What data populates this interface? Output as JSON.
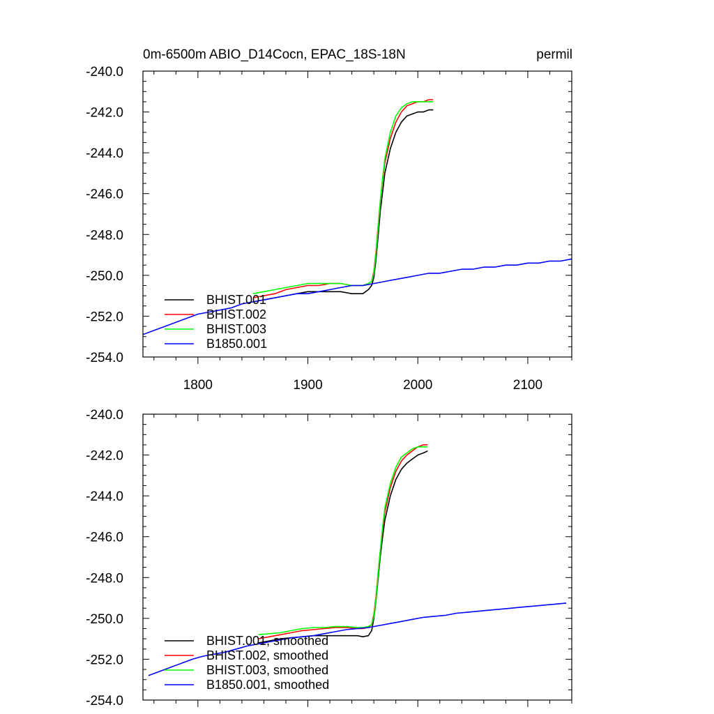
{
  "chart_data": [
    {
      "type": "line",
      "title": "0m-6500m ABIO_D14Cocn, EPAC_18S-18N",
      "title_right": "permil",
      "xlim": [
        1750,
        2140
      ],
      "ylim": [
        -254,
        -240
      ],
      "x_ticks": [
        1800,
        1900,
        2000,
        2100
      ],
      "x_tick_labels": [
        "1800",
        "1900",
        "2000",
        "2100"
      ],
      "y_ticks": [
        -240,
        -242,
        -244,
        -246,
        -248,
        -250,
        -252,
        -254
      ],
      "y_tick_labels": [
        "-240.0",
        "-242.0",
        "-244.0",
        "-246.0",
        "-248.0",
        "-250.0",
        "-252.0",
        "-254.0"
      ],
      "legend_position": "bottom-left",
      "series": [
        {
          "name": "BHIST.001",
          "color": "#000000",
          "x": [
            1850,
            1860,
            1870,
            1880,
            1890,
            1900,
            1910,
            1920,
            1930,
            1940,
            1945,
            1950,
            1955,
            1958,
            1960,
            1962,
            1964,
            1966,
            1968,
            1970,
            1975,
            1980,
            1985,
            1990,
            1995,
            2000,
            2005,
            2010,
            2014
          ],
          "y": [
            -251.3,
            -251.2,
            -251.1,
            -251.0,
            -250.9,
            -250.8,
            -250.8,
            -250.8,
            -250.8,
            -250.9,
            -250.9,
            -250.9,
            -250.7,
            -250.5,
            -250.1,
            -249.2,
            -248.0,
            -246.8,
            -245.9,
            -245.0,
            -243.8,
            -243.0,
            -242.5,
            -242.2,
            -242.1,
            -242.0,
            -242.0,
            -241.9,
            -241.9
          ]
        },
        {
          "name": "BHIST.002",
          "color": "#ff0000",
          "x": [
            1850,
            1860,
            1870,
            1880,
            1890,
            1900,
            1910,
            1920,
            1930,
            1940,
            1945,
            1950,
            1955,
            1958,
            1960,
            1962,
            1964,
            1966,
            1968,
            1970,
            1975,
            1980,
            1985,
            1990,
            1995,
            2000,
            2005,
            2010,
            2014
          ],
          "y": [
            -251.1,
            -251.0,
            -250.9,
            -250.7,
            -250.6,
            -250.5,
            -250.5,
            -250.4,
            -250.4,
            -250.5,
            -250.5,
            -250.5,
            -250.4,
            -250.3,
            -249.8,
            -248.8,
            -247.5,
            -246.3,
            -245.3,
            -244.5,
            -243.3,
            -242.5,
            -242.0,
            -241.7,
            -241.6,
            -241.5,
            -241.5,
            -241.4,
            -241.4
          ]
        },
        {
          "name": "BHIST.003",
          "color": "#00ff00",
          "x": [
            1850,
            1860,
            1870,
            1880,
            1890,
            1900,
            1910,
            1920,
            1930,
            1940,
            1945,
            1950,
            1955,
            1958,
            1960,
            1962,
            1964,
            1966,
            1968,
            1970,
            1975,
            1980,
            1985,
            1990,
            1995,
            2000,
            2005,
            2010,
            2014
          ],
          "y": [
            -250.9,
            -250.8,
            -250.7,
            -250.6,
            -250.5,
            -250.4,
            -250.4,
            -250.4,
            -250.4,
            -250.5,
            -250.5,
            -250.5,
            -250.4,
            -250.3,
            -249.9,
            -248.9,
            -247.6,
            -246.3,
            -245.2,
            -244.3,
            -243.0,
            -242.2,
            -241.8,
            -241.6,
            -241.5,
            -241.5,
            -241.5,
            -241.5,
            -241.5
          ]
        },
        {
          "name": "B1850.001",
          "color": "#0000ff",
          "x": [
            1750,
            1760,
            1770,
            1780,
            1790,
            1800,
            1810,
            1820,
            1830,
            1840,
            1850,
            1860,
            1870,
            1880,
            1890,
            1900,
            1910,
            1920,
            1930,
            1940,
            1950,
            1960,
            1970,
            1980,
            1990,
            2000,
            2010,
            2020,
            2030,
            2040,
            2050,
            2060,
            2070,
            2080,
            2090,
            2100,
            2110,
            2120,
            2130,
            2140
          ],
          "y": [
            -252.9,
            -252.7,
            -252.5,
            -252.3,
            -252.1,
            -251.9,
            -251.8,
            -251.7,
            -251.6,
            -251.4,
            -251.3,
            -251.2,
            -251.1,
            -251.0,
            -250.9,
            -250.9,
            -250.8,
            -250.7,
            -250.6,
            -250.5,
            -250.5,
            -250.4,
            -250.3,
            -250.2,
            -250.1,
            -250.0,
            -249.9,
            -249.9,
            -249.8,
            -249.7,
            -249.7,
            -249.6,
            -249.6,
            -249.5,
            -249.5,
            -249.4,
            -249.4,
            -249.3,
            -249.3,
            -249.2
          ]
        }
      ]
    },
    {
      "type": "line",
      "xlim": [
        1750,
        2140
      ],
      "ylim": [
        -254,
        -240
      ],
      "x_ticks": [
        1800,
        1900,
        2000,
        2100
      ],
      "y_ticks": [
        -240,
        -242,
        -244,
        -246,
        -248,
        -250,
        -252,
        -254
      ],
      "y_tick_labels": [
        "-240.0",
        "-242.0",
        "-244.0",
        "-246.0",
        "-248.0",
        "-250.0",
        "-252.0",
        "-254.0"
      ],
      "legend_position": "bottom-left",
      "series": [
        {
          "name": "BHIST.001, smoothed",
          "color": "#000000",
          "x": [
            1855,
            1865,
            1875,
            1885,
            1895,
            1905,
            1915,
            1925,
            1935,
            1945,
            1950,
            1955,
            1958,
            1960,
            1962,
            1964,
            1966,
            1968,
            1970,
            1975,
            1980,
            1985,
            1990,
            1995,
            2000,
            2005,
            2009
          ],
          "y": [
            -251.2,
            -251.1,
            -251.0,
            -250.95,
            -250.9,
            -250.85,
            -250.85,
            -250.85,
            -250.85,
            -250.85,
            -250.9,
            -250.85,
            -250.6,
            -250.0,
            -249.1,
            -248.0,
            -246.9,
            -246.0,
            -245.2,
            -244.0,
            -243.2,
            -242.7,
            -242.4,
            -242.2,
            -242.0,
            -241.9,
            -241.8
          ]
        },
        {
          "name": "BHIST.002, smoothed",
          "color": "#ff0000",
          "x": [
            1855,
            1865,
            1875,
            1885,
            1895,
            1905,
            1915,
            1925,
            1935,
            1945,
            1950,
            1955,
            1958,
            1960,
            1962,
            1964,
            1966,
            1968,
            1970,
            1975,
            1980,
            1985,
            1990,
            1995,
            2000,
            2005,
            2009
          ],
          "y": [
            -251.0,
            -250.9,
            -250.8,
            -250.7,
            -250.6,
            -250.55,
            -250.5,
            -250.45,
            -250.45,
            -250.5,
            -250.5,
            -250.45,
            -250.3,
            -249.8,
            -248.9,
            -247.7,
            -246.6,
            -245.6,
            -244.8,
            -243.6,
            -242.8,
            -242.3,
            -242.0,
            -241.8,
            -241.6,
            -241.5,
            -241.5
          ]
        },
        {
          "name": "BHIST.003, smoothed",
          "color": "#00ff00",
          "x": [
            1855,
            1865,
            1875,
            1885,
            1895,
            1905,
            1915,
            1925,
            1935,
            1945,
            1950,
            1955,
            1958,
            1960,
            1962,
            1964,
            1966,
            1968,
            1970,
            1975,
            1980,
            1985,
            1990,
            1995,
            2000,
            2005,
            2009
          ],
          "y": [
            -250.8,
            -250.75,
            -250.7,
            -250.6,
            -250.5,
            -250.45,
            -250.45,
            -250.4,
            -250.4,
            -250.45,
            -250.45,
            -250.4,
            -250.3,
            -249.9,
            -249.0,
            -247.8,
            -246.6,
            -245.5,
            -244.6,
            -243.4,
            -242.6,
            -242.1,
            -241.9,
            -241.7,
            -241.6,
            -241.6,
            -241.6
          ]
        },
        {
          "name": "B1850.001, smoothed",
          "color": "#0000ff",
          "x": [
            1755,
            1765,
            1775,
            1785,
            1795,
            1805,
            1815,
            1825,
            1835,
            1845,
            1855,
            1865,
            1875,
            1885,
            1895,
            1905,
            1915,
            1925,
            1935,
            1945,
            1955,
            1965,
            1975,
            1985,
            1995,
            2005,
            2015,
            2025,
            2035,
            2045,
            2055,
            2065,
            2075,
            2085,
            2095,
            2105,
            2115,
            2125,
            2135
          ],
          "y": [
            -252.8,
            -252.6,
            -252.4,
            -252.2,
            -252.0,
            -251.85,
            -251.75,
            -251.65,
            -251.5,
            -251.35,
            -251.25,
            -251.15,
            -251.05,
            -250.95,
            -250.9,
            -250.85,
            -250.75,
            -250.65,
            -250.55,
            -250.5,
            -250.45,
            -250.35,
            -250.25,
            -250.15,
            -250.05,
            -249.95,
            -249.9,
            -249.85,
            -249.75,
            -249.7,
            -249.65,
            -249.6,
            -249.55,
            -249.5,
            -249.45,
            -249.4,
            -249.35,
            -249.3,
            -249.25
          ]
        }
      ]
    }
  ]
}
